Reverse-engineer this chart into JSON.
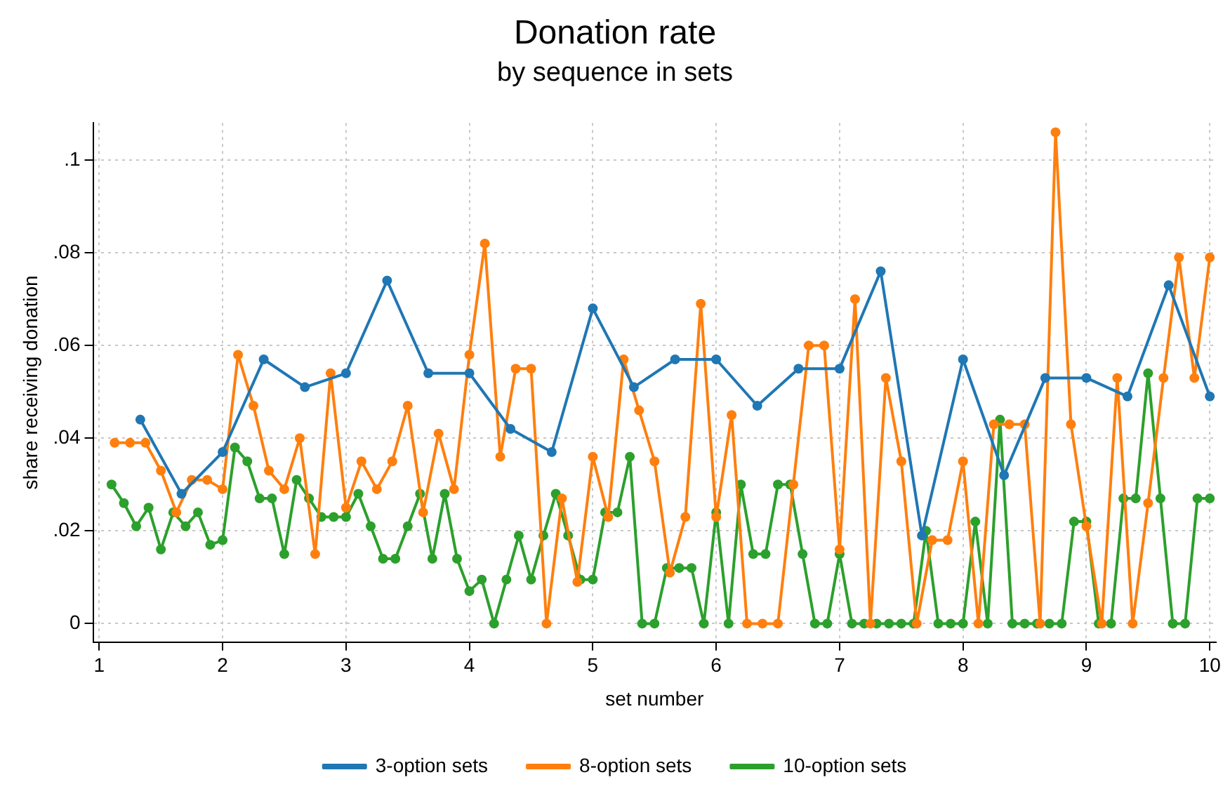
{
  "chart_data": {
    "type": "line",
    "title": "Donation rate",
    "subtitle": "by sequence in sets",
    "xlabel": "set number",
    "ylabel": "share receiving donation",
    "xlim": [
      0.95,
      10.05
    ],
    "xticks": [
      1,
      2,
      3,
      4,
      5,
      6,
      7,
      8,
      9,
      10
    ],
    "ylim": [
      -0.004,
      0.108
    ],
    "yticks": [
      0,
      {
        "value": 0.02,
        "label": ".02"
      },
      {
        "value": 0.04,
        "label": ".04"
      },
      {
        "value": 0.06,
        "label": ".06"
      },
      {
        "value": 0.08,
        "label": ".08"
      },
      {
        "value": 0.1,
        "label": ".1"
      }
    ],
    "grid": true,
    "legend": "bottom",
    "marker": "circle",
    "line_style": "solid",
    "series": [
      {
        "name": "3-option sets",
        "color": "#1f77b4",
        "x": [
          1.333,
          1.667,
          2,
          2.333,
          2.667,
          3,
          3.333,
          3.667,
          4,
          4.333,
          4.667,
          5,
          5.333,
          5.667,
          6,
          6.333,
          6.667,
          7,
          7.333,
          7.667,
          8,
          8.333,
          8.667,
          9,
          9.333,
          9.667,
          10
        ],
        "values": [
          0.044,
          0.028,
          0.037,
          0.057,
          0.051,
          0.054,
          0.074,
          0.054,
          0.054,
          0.042,
          0.037,
          0.068,
          0.051,
          0.057,
          0.057,
          0.047,
          0.055,
          0.055,
          0.076,
          0.019,
          0.057,
          0.032,
          0.053,
          0.053,
          0.049,
          0.073,
          0.049
        ]
      },
      {
        "name": "8-option sets",
        "color": "#ff7f0e",
        "x": [
          1.125,
          1.25,
          1.375,
          1.5,
          1.625,
          1.75,
          1.875,
          2,
          2.125,
          2.25,
          2.375,
          2.5,
          2.625,
          2.75,
          2.875,
          3,
          3.125,
          3.25,
          3.375,
          3.5,
          3.625,
          3.75,
          3.875,
          4,
          4.125,
          4.25,
          4.375,
          4.5,
          4.625,
          4.75,
          4.875,
          5,
          5.125,
          5.25,
          5.375,
          5.5,
          5.625,
          5.75,
          5.875,
          6,
          6.125,
          6.25,
          6.375,
          6.5,
          6.625,
          6.75,
          6.875,
          7,
          7.125,
          7.25,
          7.375,
          7.5,
          7.625,
          7.75,
          7.875,
          8,
          8.125,
          8.25,
          8.375,
          8.5,
          8.625,
          8.75,
          8.875,
          9,
          9.125,
          9.25,
          9.375,
          9.5,
          9.625,
          9.75,
          9.875,
          10
        ],
        "values": [
          0.039,
          0.039,
          0.039,
          0.033,
          0.024,
          0.031,
          0.031,
          0.029,
          0.058,
          0.047,
          0.033,
          0.029,
          0.04,
          0.015,
          0.054,
          0.025,
          0.035,
          0.029,
          0.035,
          0.047,
          0.024,
          0.041,
          0.029,
          0.058,
          0.082,
          0.036,
          0.055,
          0.055,
          0,
          0.027,
          0.009,
          0.036,
          0.023,
          0.057,
          0.046,
          0.035,
          0.011,
          0.023,
          0.069,
          0.023,
          0.045,
          0,
          0,
          0,
          0.03,
          0.06,
          0.06,
          0.016,
          0.07,
          0,
          0.053,
          0.035,
          0,
          0.018,
          0.018,
          0.035,
          0,
          0.043,
          0.043,
          0.043,
          0,
          0.106,
          0.043,
          0.021,
          0,
          0.053,
          0,
          0.026,
          0.053,
          0.079,
          0.053,
          0.079
        ]
      },
      {
        "name": "10-option sets",
        "color": "#2ca02c",
        "x": [
          1.1,
          1.2,
          1.3,
          1.4,
          1.5,
          1.6,
          1.7,
          1.8,
          1.9,
          2,
          2.1,
          2.2,
          2.3,
          2.4,
          2.5,
          2.6,
          2.7,
          2.8,
          2.9,
          3,
          3.1,
          3.2,
          3.3,
          3.4,
          3.5,
          3.6,
          3.7,
          3.8,
          3.9,
          4,
          4.1,
          4.2,
          4.3,
          4.4,
          4.5,
          4.6,
          4.7,
          4.8,
          4.9,
          5,
          5.1,
          5.2,
          5.3,
          5.4,
          5.5,
          5.6,
          5.7,
          5.8,
          5.9,
          6,
          6.1,
          6.2,
          6.3,
          6.4,
          6.5,
          6.6,
          6.7,
          6.8,
          6.9,
          7,
          7.1,
          7.2,
          7.3,
          7.4,
          7.5,
          7.6,
          7.7,
          7.8,
          7.9,
          8,
          8.1,
          8.2,
          8.3,
          8.4,
          8.5,
          8.6,
          8.7,
          8.8,
          8.9,
          9,
          9.1,
          9.2,
          9.3,
          9.4,
          9.5,
          9.6,
          9.7,
          9.8,
          9.9,
          10
        ],
        "values": [
          0.03,
          0.026,
          0.021,
          0.025,
          0.016,
          0.024,
          0.021,
          0.024,
          0.017,
          0.018,
          0.038,
          0.035,
          0.027,
          0.027,
          0.015,
          0.031,
          0.027,
          0.023,
          0.023,
          0.023,
          0.028,
          0.021,
          0.014,
          0.014,
          0.021,
          0.028,
          0.014,
          0.028,
          0.014,
          0.007,
          0.0095,
          0,
          0.0095,
          0.019,
          0.0095,
          0.019,
          0.028,
          0.019,
          0.0095,
          0.0095,
          0.024,
          0.024,
          0.036,
          0,
          0,
          0.012,
          0.012,
          0.012,
          0,
          0.024,
          0,
          0.03,
          0.015,
          0.015,
          0.03,
          0.03,
          0.015,
          0,
          0,
          0.015,
          0,
          0,
          0,
          0,
          0,
          0,
          0.02,
          0,
          0,
          0,
          0.022,
          0,
          0.044,
          0,
          0,
          0,
          0,
          0,
          0.022,
          0.022,
          0,
          0,
          0.027,
          0.027,
          0.054,
          0.027,
          0,
          0,
          0.027,
          0.027
        ]
      }
    ]
  }
}
